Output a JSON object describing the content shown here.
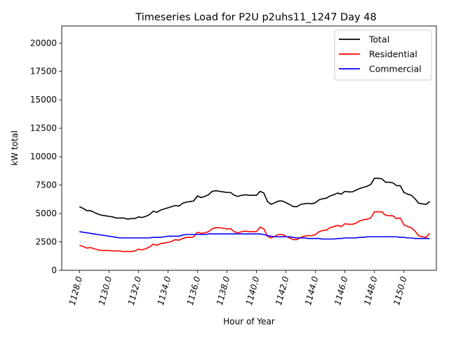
{
  "chart_data": {
    "type": "line",
    "title": "Timeseries Load for P2U p2uhs11_1247  Day 48",
    "xlabel": "Hour of Year",
    "ylabel": "kW total",
    "xlim": [
      1126.8,
      1152.2
    ],
    "ylim": [
      0,
      21500
    ],
    "xticks": [
      1128,
      1130,
      1132,
      1134,
      1136,
      1138,
      1140,
      1142,
      1144,
      1146,
      1148,
      1150
    ],
    "xtick_labels": [
      "1128.0",
      "1130.0",
      "1132.0",
      "1134.0",
      "1136.0",
      "1138.0",
      "1140.0",
      "1142.0",
      "1144.0",
      "1146.0",
      "1148.0",
      "1150.0"
    ],
    "yticks": [
      0,
      2500,
      5000,
      7500,
      10000,
      12500,
      15000,
      17500,
      20000
    ],
    "ytick_labels": [
      "0",
      "2500",
      "5000",
      "7500",
      "10000",
      "12500",
      "15000",
      "17500",
      "20000"
    ],
    "legend_position": "top-right",
    "x": [
      1128,
      1128.25,
      1128.5,
      1128.75,
      1129,
      1129.25,
      1129.5,
      1129.75,
      1130,
      1130.25,
      1130.5,
      1130.75,
      1131,
      1131.25,
      1131.5,
      1131.75,
      1132,
      1132.25,
      1132.5,
      1132.75,
      1133,
      1133.25,
      1133.5,
      1133.75,
      1134,
      1134.25,
      1134.5,
      1134.75,
      1135,
      1135.25,
      1135.5,
      1135.75,
      1136,
      1136.25,
      1136.5,
      1136.75,
      1137,
      1137.25,
      1137.5,
      1137.75,
      1138,
      1138.25,
      1138.5,
      1138.75,
      1139,
      1139.25,
      1139.5,
      1139.75,
      1140,
      1140.25,
      1140.5,
      1140.75,
      1141,
      1141.25,
      1141.5,
      1141.75,
      1142,
      1142.25,
      1142.5,
      1142.75,
      1143,
      1143.25,
      1143.5,
      1143.75,
      1144,
      1144.25,
      1144.5,
      1144.75,
      1145,
      1145.25,
      1145.5,
      1145.75,
      1146,
      1146.25,
      1146.5,
      1146.75,
      1147,
      1147.25,
      1147.5,
      1147.75,
      1148,
      1148.25,
      1148.5,
      1148.75,
      1149,
      1149.25,
      1149.5,
      1149.75,
      1150,
      1150.25,
      1150.5,
      1150.75,
      1151,
      1151.25,
      1151.5,
      1151.75
    ],
    "series": [
      {
        "name": "Total",
        "color": "#000000",
        "values": [
          5600,
          5450,
          5250,
          5250,
          5100,
          4950,
          4850,
          4800,
          4750,
          4700,
          4600,
          4600,
          4600,
          4500,
          4550,
          4550,
          4700,
          4650,
          4750,
          4900,
          5200,
          5100,
          5300,
          5400,
          5500,
          5600,
          5700,
          5650,
          5900,
          6000,
          6050,
          6100,
          6550,
          6400,
          6500,
          6650,
          6950,
          7000,
          6950,
          6900,
          6850,
          6850,
          6600,
          6500,
          6600,
          6650,
          6600,
          6600,
          6600,
          6950,
          6800,
          6050,
          5800,
          5950,
          6100,
          6100,
          5950,
          5800,
          5600,
          5600,
          5800,
          5850,
          5900,
          5850,
          5950,
          6200,
          6300,
          6350,
          6550,
          6650,
          6800,
          6700,
          6950,
          6900,
          6900,
          7050,
          7200,
          7300,
          7400,
          7550,
          8100,
          8100,
          8050,
          7750,
          7750,
          7700,
          7450,
          7450,
          6850,
          6700,
          6600,
          6300,
          5900,
          5850,
          5800,
          6050
        ]
      },
      {
        "name": "Residential",
        "color": "#ff0000",
        "values": [
          2200,
          2100,
          1950,
          2000,
          1900,
          1800,
          1750,
          1750,
          1750,
          1700,
          1700,
          1700,
          1650,
          1650,
          1650,
          1700,
          1850,
          1800,
          1900,
          2050,
          2300,
          2200,
          2350,
          2400,
          2450,
          2550,
          2700,
          2650,
          2800,
          2900,
          2900,
          2950,
          3350,
          3250,
          3300,
          3400,
          3650,
          3750,
          3750,
          3700,
          3650,
          3650,
          3400,
          3300,
          3400,
          3450,
          3400,
          3400,
          3400,
          3800,
          3650,
          3000,
          2850,
          3000,
          3150,
          3150,
          3000,
          2850,
          2700,
          2700,
          2900,
          3000,
          3050,
          3050,
          3150,
          3400,
          3500,
          3550,
          3750,
          3850,
          3950,
          3850,
          4100,
          4050,
          4050,
          4150,
          4350,
          4450,
          4500,
          4600,
          5150,
          5150,
          5150,
          4850,
          4800,
          4800,
          4550,
          4600,
          4000,
          3850,
          3750,
          3450,
          3050,
          2950,
          2900,
          3250
        ]
      },
      {
        "name": "Commercial",
        "color": "#0000ff",
        "values": [
          3400,
          3350,
          3300,
          3250,
          3200,
          3150,
          3100,
          3050,
          3000,
          2950,
          2900,
          2850,
          2850,
          2850,
          2850,
          2850,
          2850,
          2850,
          2850,
          2850,
          2900,
          2900,
          2900,
          2950,
          3000,
          3000,
          3000,
          3000,
          3100,
          3150,
          3150,
          3150,
          3150,
          3150,
          3150,
          3200,
          3200,
          3200,
          3200,
          3200,
          3200,
          3200,
          3200,
          3200,
          3200,
          3200,
          3200,
          3200,
          3200,
          3200,
          3150,
          3050,
          3000,
          2950,
          2950,
          2950,
          2950,
          2950,
          2900,
          2850,
          2850,
          2850,
          2800,
          2800,
          2800,
          2800,
          2750,
          2750,
          2750,
          2750,
          2800,
          2800,
          2850,
          2850,
          2850,
          2850,
          2900,
          2900,
          2950,
          2950,
          2950,
          2950,
          2950,
          2950,
          2950,
          2950,
          2950,
          2900,
          2900,
          2850,
          2850,
          2800,
          2800,
          2800,
          2800,
          2800
        ]
      }
    ]
  }
}
